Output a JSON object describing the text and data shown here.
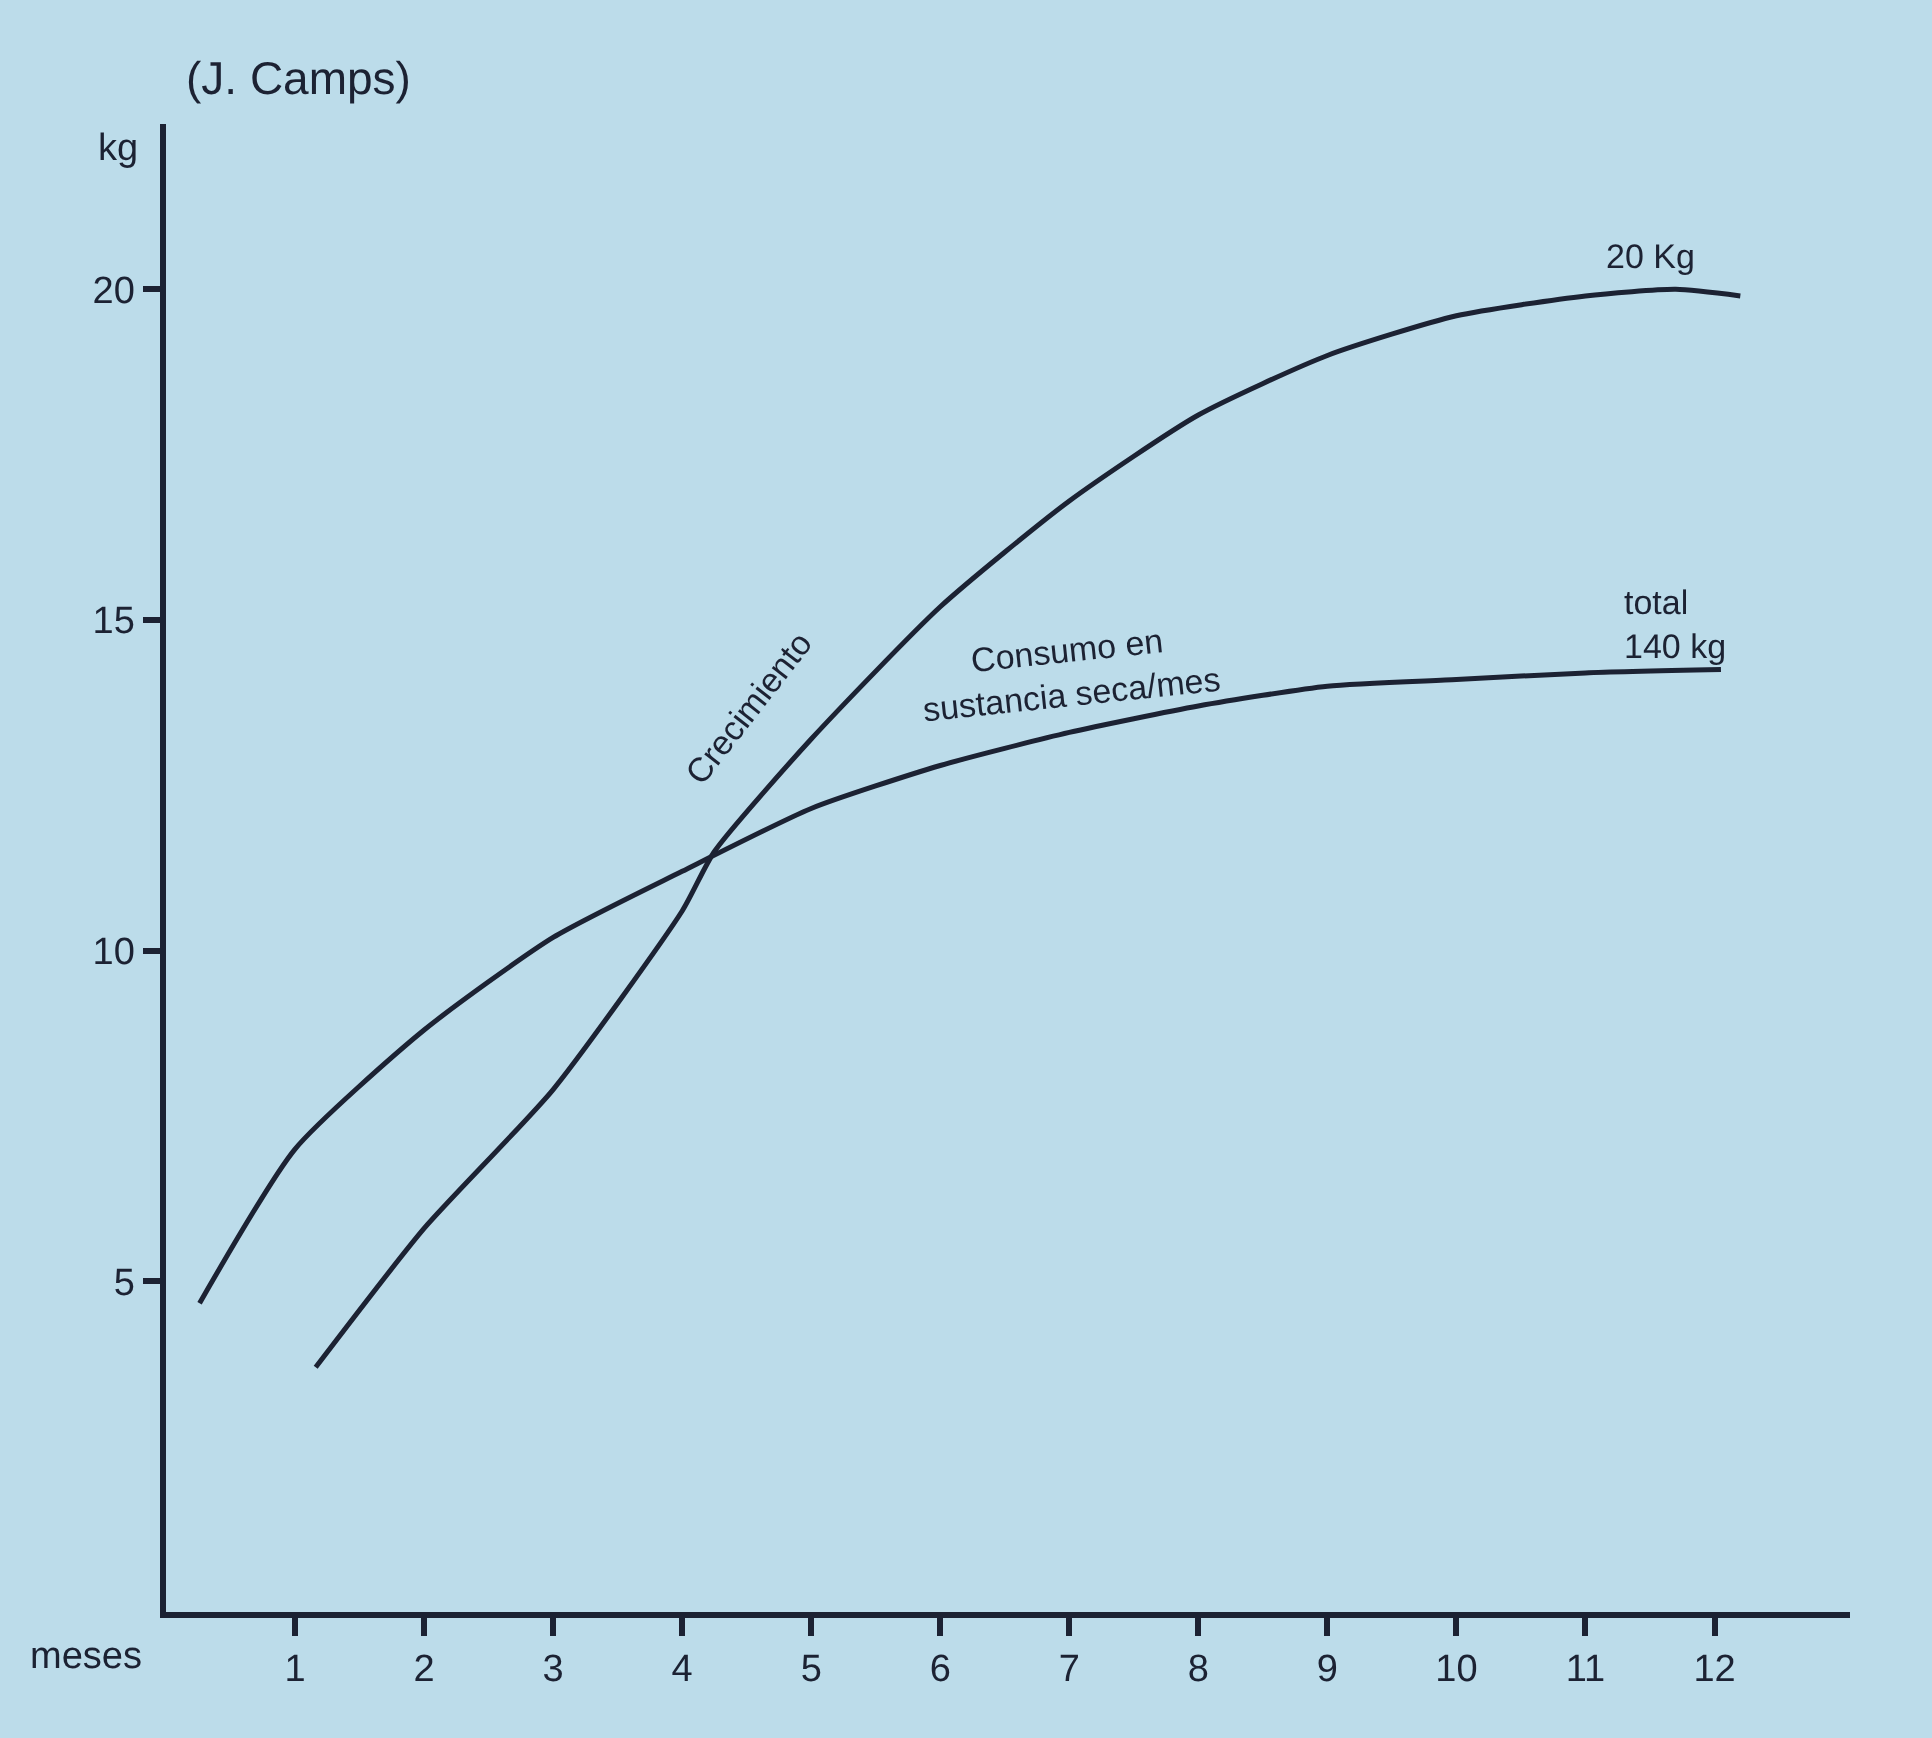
{
  "chart_data": {
    "type": "line",
    "xlabel": "meses",
    "ylabel": "kg",
    "xlim": [
      0,
      13.05
    ],
    "ylim": [
      0,
      22.5
    ],
    "xticks": [
      1,
      2,
      3,
      4,
      5,
      6,
      7,
      8,
      9,
      10,
      11,
      12
    ],
    "yticks": [
      5,
      10,
      15,
      20
    ],
    "grid": false,
    "legend": false,
    "marker": "none",
    "line_style": "solid",
    "series": [
      {
        "color": "#1c2233",
        "x": [
          1.16,
          2,
          3,
          4,
          4.25,
          5,
          6,
          7,
          8,
          9,
          10,
          11,
          11.7,
          12.2
        ],
        "values": [
          3.7,
          5.8,
          7.9,
          10.6,
          11.5,
          13.2,
          15.2,
          16.8,
          18.1,
          19.0,
          19.6,
          19.9,
          20.0,
          19.9
        ]
      },
      {
        "color": "#1c2233",
        "x": [
          0.26,
          1,
          2,
          3,
          4,
          5,
          6,
          7,
          8,
          9,
          10,
          11,
          12.05
        ],
        "values": [
          4.67,
          7.0,
          8.8,
          10.2,
          11.2,
          12.15,
          12.8,
          13.3,
          13.7,
          14.0,
          14.1,
          14.2,
          14.25
        ]
      }
    ],
    "annotations": [
      "(J. Camps)",
      {
        "text": "20 Kg",
        "x": 11.5,
        "y": 20.0
      },
      {
        "text": "total\n140 kg",
        "x": 11.7,
        "y": 14.25
      },
      {
        "text": "Crecimiento",
        "x": 4.9,
        "y": 13.0
      },
      {
        "text": "Consumo en\nsustancia seca/mes",
        "x": 7.0,
        "y": 13.3
      }
    ]
  }
}
